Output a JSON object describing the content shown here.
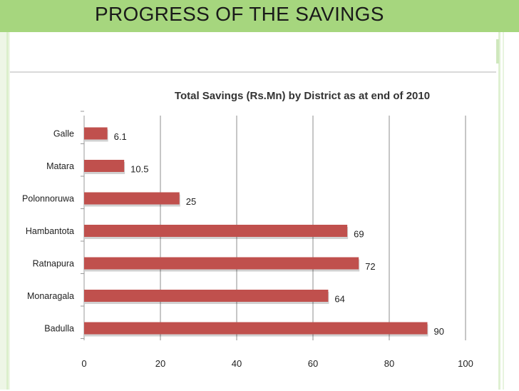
{
  "slide": {
    "title": "PROGRESS OF THE SAVINGS",
    "accent_color": "#a6d67e"
  },
  "chart_data": {
    "type": "bar",
    "orientation": "horizontal",
    "title": "Total Savings (Rs.Mn) by District as at end of 2010",
    "categories": [
      "Galle",
      "Matara",
      "Polonnoruwa",
      "Hambantota",
      "Ratnapura",
      "Monaragala",
      "Badulla"
    ],
    "values": [
      6.1,
      10.5,
      25,
      69,
      72,
      64,
      90
    ],
    "value_labels": [
      "6.1",
      "10.5",
      "25",
      "69",
      "72",
      "64",
      "90"
    ],
    "xlim": [
      0,
      100
    ],
    "xticks": [
      0,
      20,
      40,
      60,
      80,
      100
    ],
    "grid": true,
    "bar_color": "#c0504d"
  }
}
